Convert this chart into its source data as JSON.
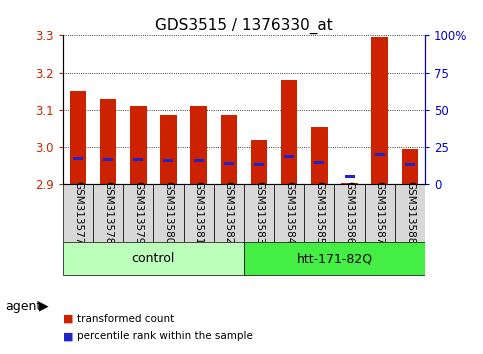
{
  "title": "GDS3515 / 1376330_at",
  "samples": [
    "GSM313577",
    "GSM313578",
    "GSM313579",
    "GSM313580",
    "GSM313581",
    "GSM313582",
    "GSM313583",
    "GSM313584",
    "GSM313585",
    "GSM313586",
    "GSM313587",
    "GSM313588"
  ],
  "red_values": [
    3.15,
    3.13,
    3.11,
    3.085,
    3.11,
    3.085,
    3.02,
    3.18,
    3.055,
    2.905,
    3.295,
    2.995
  ],
  "blue_values": [
    2.965,
    2.962,
    2.963,
    2.96,
    2.96,
    2.953,
    2.95,
    2.97,
    2.955,
    2.918,
    2.975,
    2.95
  ],
  "ymin": 2.9,
  "ymax": 3.3,
  "y_ticks": [
    2.9,
    3.0,
    3.1,
    3.2,
    3.3
  ],
  "y2_ticks": [
    0,
    25,
    50,
    75,
    100
  ],
  "y2_labels": [
    "0",
    "25",
    "50",
    "75",
    "100%"
  ],
  "agent_label": "agent",
  "control_label": "control",
  "htt_label": "htt-171-82Q",
  "control_color": "#bbffbb",
  "htt_color": "#44ee44",
  "legend_items": [
    {
      "color": "#cc2200",
      "label": "transformed count"
    },
    {
      "color": "#2222cc",
      "label": "percentile rank within the sample"
    }
  ],
  "bar_color": "#cc2200",
  "blue_color": "#2222cc",
  "bar_width": 0.55,
  "base": 2.9,
  "yaxis_color": "#cc2200",
  "y2axis_color": "#0000cc",
  "xlabel_fontsize": 7.5,
  "tick_label_fontsize": 8.5,
  "title_fontsize": 11,
  "n_control": 6,
  "n_total": 12
}
